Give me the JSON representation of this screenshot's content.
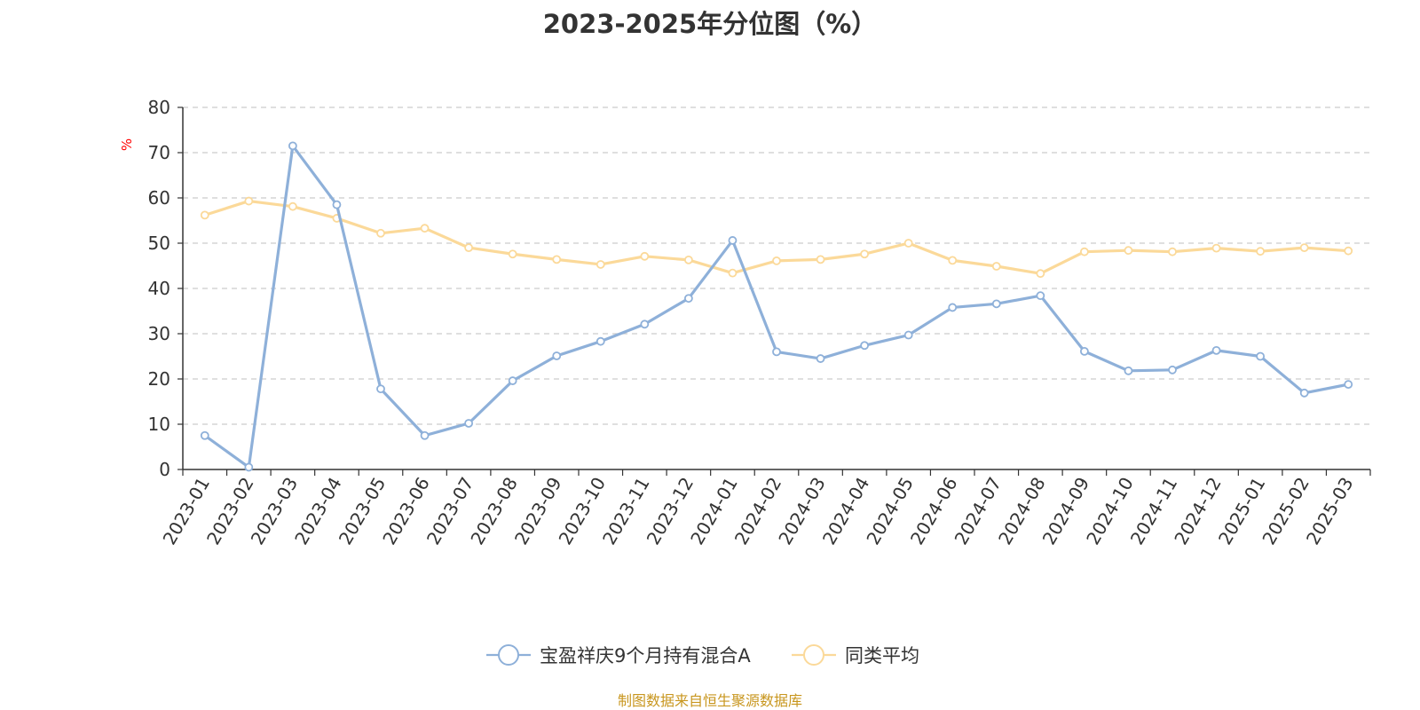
{
  "title": "2023-2025年分位图（%）",
  "source_note": "制图数据来自恒生聚源数据库",
  "colors": {
    "series_a": "#8eb0d9",
    "series_b": "#fbd999",
    "grid": "#cccccc",
    "axis": "#333333",
    "ylabel": "#ff0000",
    "source_note": "#c8961e"
  },
  "chart_data": {
    "type": "line",
    "title": "2023-2025年分位图（%）",
    "xlabel": "",
    "ylabel": "%",
    "ylim": [
      0,
      80
    ],
    "yticks": [
      0,
      10,
      20,
      30,
      40,
      50,
      60,
      70,
      80
    ],
    "grid": "horizontal-dashed",
    "legend_position": "bottom-center",
    "categories": [
      "2023-01",
      "2023-02",
      "2023-03",
      "2023-04",
      "2023-05",
      "2023-06",
      "2023-07",
      "2023-08",
      "2023-09",
      "2023-10",
      "2023-11",
      "2023-12",
      "2024-01",
      "2024-02",
      "2024-03",
      "2024-04",
      "2024-05",
      "2024-06",
      "2024-07",
      "2024-08",
      "2024-09",
      "2024-10",
      "2024-11",
      "2024-12",
      "2025-01",
      "2025-02",
      "2025-03"
    ],
    "series": [
      {
        "name": "宝盈祥庆9个月持有混合A",
        "values": [
          7.5,
          0.5,
          71.5,
          58.5,
          17.8,
          7.5,
          10.2,
          19.6,
          25.1,
          28.3,
          32.1,
          37.8,
          50.6,
          26.0,
          24.5,
          27.4,
          29.7,
          35.8,
          36.6,
          38.4,
          26.1,
          21.8,
          22.0,
          26.3,
          25.0,
          16.9,
          18.8
        ]
      },
      {
        "name": "同类平均",
        "values": [
          56.2,
          59.3,
          58.1,
          55.5,
          52.2,
          53.3,
          49.0,
          47.6,
          46.4,
          45.3,
          47.1,
          46.3,
          43.4,
          46.1,
          46.4,
          47.6,
          50.0,
          46.2,
          44.9,
          43.3,
          48.1,
          48.4,
          48.1,
          48.9,
          48.2,
          49.0,
          48.3
        ]
      }
    ]
  }
}
